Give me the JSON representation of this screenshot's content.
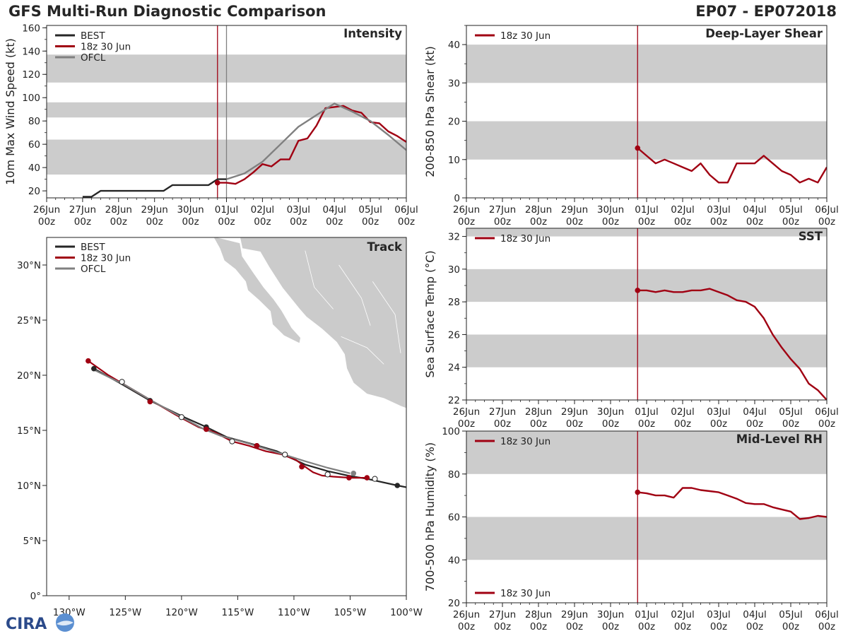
{
  "figure": {
    "title": "GFS Multi-Run Diagnostic Comparison",
    "storm_id": "EP07 - EP072018",
    "logo_text": "CIRA"
  },
  "colors": {
    "best": "#262626",
    "run": "#a00012",
    "ofcl": "#808080",
    "band": "#cccccc",
    "land": "#cbcbcb",
    "vline": "#a00012"
  },
  "time_axis": {
    "ticks": [
      0,
      1,
      2,
      3,
      4,
      5,
      6,
      7,
      8,
      9,
      10
    ],
    "labels": [
      "26Jun\n00z",
      "27Jun\n00z",
      "28Jun\n00z",
      "29Jun\n00z",
      "30Jun\n00z",
      "01Jul\n00z",
      "02Jul\n00z",
      "03Jul\n00z",
      "04Jul\n00z",
      "05Jul\n00z",
      "06Jul\n00z"
    ],
    "init_time": 4.75,
    "units": "days since 26Jun 00z"
  },
  "chart_data": [
    {
      "id": "intensity",
      "type": "line",
      "title": "Intensity",
      "ylabel": "10m Max Wind Speed (kt)",
      "xlim": [
        0,
        10
      ],
      "ylim": [
        14,
        162
      ],
      "yticks": [
        20,
        40,
        60,
        80,
        100,
        120,
        140,
        160
      ],
      "bands": [
        [
          34,
          64
        ],
        [
          83,
          96
        ],
        [
          113,
          137
        ]
      ],
      "vlines": [
        {
          "x": 4.75,
          "color": "run"
        },
        {
          "x": 5.0,
          "color": "ofcl"
        }
      ],
      "legend": [
        "BEST",
        "18z 30 Jun",
        "OFCL"
      ],
      "series": [
        {
          "name": "BEST",
          "color": "best",
          "x": [
            1.0,
            1.25,
            1.5,
            1.75,
            2.0,
            2.25,
            2.5,
            2.75,
            3.0,
            3.25,
            3.5,
            3.75,
            4.0,
            4.25,
            4.5,
            4.75,
            5.0
          ],
          "y": [
            15,
            15,
            20,
            20,
            20,
            20,
            20,
            20,
            20,
            20,
            25,
            25,
            25,
            25,
            25,
            30,
            30
          ]
        },
        {
          "name": "18z 30 Jun",
          "color": "run",
          "marker_first": true,
          "x": [
            4.75,
            5.0,
            5.25,
            5.5,
            5.75,
            6.0,
            6.25,
            6.5,
            6.75,
            7.0,
            7.25,
            7.5,
            7.75,
            8.0,
            8.25,
            8.5,
            8.75,
            9.0,
            9.25,
            9.5,
            9.75,
            10.0
          ],
          "y": [
            27,
            27,
            26,
            30,
            36,
            43,
            41,
            47,
            47,
            63,
            65,
            76,
            91,
            92,
            93,
            89,
            87,
            79,
            78,
            71,
            67,
            62
          ]
        },
        {
          "name": "OFCL",
          "color": "ofcl",
          "x": [
            5.0,
            5.5,
            6.0,
            6.5,
            7.0,
            7.5,
            8.0,
            8.5,
            9.0,
            9.5,
            10.0
          ],
          "y": [
            30,
            35,
            45,
            60,
            75,
            85,
            95,
            88,
            80,
            68,
            55
          ]
        }
      ]
    },
    {
      "id": "shear",
      "type": "line",
      "title": "Deep-Layer Shear",
      "ylabel": "200-850 hPa Shear (kt)",
      "xlim": [
        0,
        10
      ],
      "ylim": [
        0,
        45
      ],
      "yticks": [
        0,
        10,
        20,
        30,
        40
      ],
      "bands": [
        [
          10,
          20
        ],
        [
          30,
          40
        ]
      ],
      "vlines": [
        {
          "x": 4.75,
          "color": "run"
        }
      ],
      "legend": [
        "18z 30 Jun"
      ],
      "series": [
        {
          "name": "18z 30 Jun",
          "color": "run",
          "marker_first": true,
          "x": [
            4.75,
            5.0,
            5.25,
            5.5,
            5.75,
            6.0,
            6.25,
            6.5,
            6.75,
            7.0,
            7.25,
            7.5,
            7.75,
            8.0,
            8.25,
            8.5,
            8.75,
            9.0,
            9.25,
            9.5,
            9.75,
            10.0
          ],
          "y": [
            13,
            11,
            9,
            10,
            9,
            8,
            7,
            9,
            6,
            4,
            4,
            9,
            9,
            9,
            11,
            9,
            7,
            6,
            4,
            5,
            4,
            8
          ]
        }
      ]
    },
    {
      "id": "sst",
      "type": "line",
      "title": "SST",
      "ylabel": "Sea Surface Temp (°C)",
      "xlim": [
        0,
        10
      ],
      "ylim": [
        22,
        32.5
      ],
      "yticks": [
        22,
        24,
        26,
        28,
        30,
        32
      ],
      "bands": [
        [
          24,
          26
        ],
        [
          28,
          30
        ],
        [
          32,
          33
        ]
      ],
      "vlines": [
        {
          "x": 4.75,
          "color": "run"
        }
      ],
      "legend": [
        "18z 30 Jun"
      ],
      "series": [
        {
          "name": "18z 30 Jun",
          "color": "run",
          "marker_first": true,
          "x": [
            4.75,
            5.0,
            5.25,
            5.5,
            5.75,
            6.0,
            6.25,
            6.5,
            6.75,
            7.0,
            7.25,
            7.5,
            7.75,
            8.0,
            8.25,
            8.5,
            8.75,
            9.0,
            9.25,
            9.5,
            9.75,
            10.0
          ],
          "y": [
            28.7,
            28.7,
            28.6,
            28.7,
            28.6,
            28.6,
            28.7,
            28.7,
            28.8,
            28.6,
            28.4,
            28.1,
            28.0,
            27.7,
            27.0,
            26.0,
            25.2,
            24.5,
            23.9,
            23.0,
            22.6,
            22.0
          ]
        }
      ]
    },
    {
      "id": "rh",
      "type": "line",
      "title": "Mid-Level RH",
      "ylabel": "700-500 hPa Humidity (%)",
      "xlim": [
        0,
        10
      ],
      "ylim": [
        20,
        100
      ],
      "yticks": [
        20,
        40,
        60,
        80,
        100
      ],
      "bands": [
        [
          40,
          60
        ],
        [
          80,
          100
        ]
      ],
      "vlines": [
        {
          "x": 4.75,
          "color": "run"
        }
      ],
      "legend": [
        "18z 30 Jun"
      ],
      "series": [
        {
          "name": "18z 30 Jun",
          "color": "run",
          "marker_first": true,
          "x": [
            4.75,
            5.0,
            5.25,
            5.5,
            5.75,
            6.0,
            6.25,
            6.5,
            6.75,
            7.0,
            7.25,
            7.5,
            7.75,
            8.0,
            8.25,
            8.5,
            8.75,
            9.0,
            9.25,
            9.5,
            9.75,
            10.0
          ],
          "y": [
            71.5,
            71,
            70,
            70,
            69,
            73.5,
            73.5,
            72.5,
            72,
            71.5,
            70,
            68.5,
            66.5,
            66,
            66,
            64.5,
            63.5,
            62.5,
            59,
            59.5,
            60.5,
            60
          ]
        }
      ]
    },
    {
      "id": "track",
      "type": "map-track",
      "title": "Track",
      "xlim": [
        -132,
        -100
      ],
      "ylim": [
        0,
        32.5
      ],
      "xticks": [
        -130,
        -125,
        -120,
        -115,
        -110,
        -105,
        -100
      ],
      "xticklabels": [
        "130°W",
        "125°W",
        "120°W",
        "115°W",
        "110°W",
        "105°W",
        "100°W"
      ],
      "yticks": [
        0,
        5,
        10,
        15,
        20,
        25,
        30
      ],
      "yticklabels": [
        "0°",
        "5°N",
        "10°N",
        "15°N",
        "20°N",
        "25°N",
        "30°N"
      ],
      "legend": [
        "BEST",
        "18z 30 Jun",
        "OFCL"
      ],
      "series": [
        {
          "name": "BEST",
          "color": "best",
          "lon": [
            -99.8,
            -100.8,
            -103.5,
            -105.2,
            -107.0,
            -109.0,
            -110.5,
            -111.5,
            -113.5,
            -116.0,
            -117.8,
            -120.0,
            -122.8,
            -125.5,
            -127.8
          ],
          "lat": [
            9.8,
            10.0,
            10.6,
            10.9,
            11.3,
            11.9,
            12.6,
            13.1,
            13.7,
            14.4,
            15.3,
            16.3,
            17.7,
            19.3,
            20.6
          ],
          "dots_filled": [
            -100.8,
            -109.3,
            -113.3,
            -117.8,
            -122.8,
            -127.8
          ],
          "dots_lat": [
            10.0,
            11.7,
            13.6,
            15.3,
            17.7,
            20.6
          ]
        },
        {
          "name": "18z 30 Jun",
          "color": "run",
          "lon": [
            -103.5,
            -105.0,
            -106.5,
            -107.5,
            -108.3,
            -109.0,
            -109.8,
            -111.0,
            -112.5,
            -114.0,
            -115.5,
            -117.0,
            -118.5,
            -120.5,
            -122.5,
            -124.5,
            -126.5,
            -128.3
          ],
          "lat": [
            10.7,
            10.7,
            10.8,
            10.9,
            11.2,
            11.7,
            12.3,
            12.8,
            13.1,
            13.6,
            14.0,
            14.8,
            15.3,
            16.4,
            17.6,
            18.8,
            20.0,
            21.3
          ],
          "dots_filled": [
            -103.5,
            -105.1,
            -109.3,
            -113.3,
            -117.8,
            -122.8,
            -128.3
          ],
          "dots_lat": [
            10.7,
            10.7,
            11.7,
            13.6,
            15.1,
            17.6,
            21.3
          ]
        },
        {
          "name": "OFCL",
          "color": "ofcl",
          "lon": [
            -105.0,
            -107.0,
            -109.0,
            -111.5,
            -114.0,
            -116.5,
            -118.0,
            -120.0,
            -122.5,
            -125.0,
            -127.8
          ],
          "lat": [
            11.1,
            11.6,
            12.2,
            13.0,
            13.8,
            14.5,
            15.1,
            16.2,
            17.6,
            19.1,
            20.5
          ],
          "dots_open": [
            -102.8,
            -107.0,
            -110.8,
            -115.5,
            -120.0,
            -125.3
          ],
          "dots_open_lat": [
            10.6,
            11.0,
            12.8,
            14.0,
            16.2,
            19.4
          ]
        }
      ]
    }
  ]
}
